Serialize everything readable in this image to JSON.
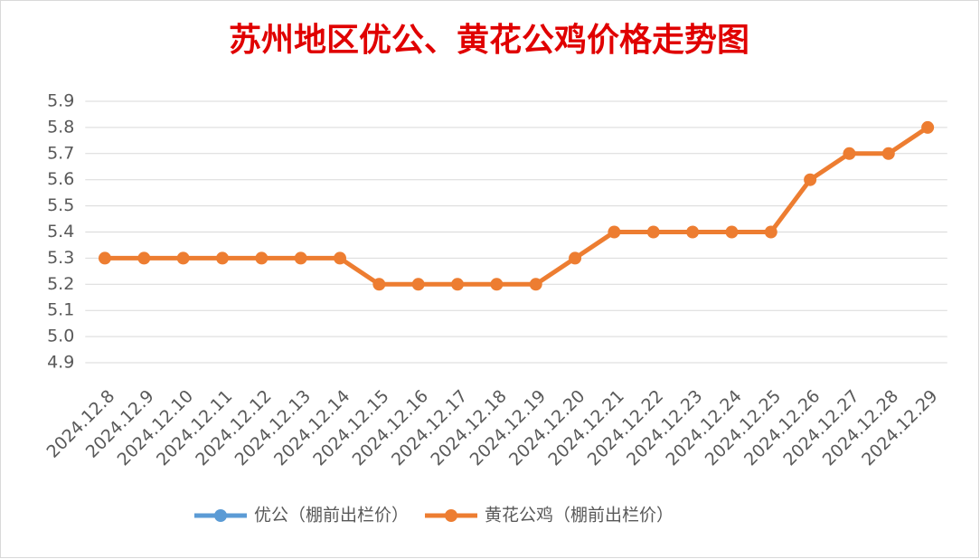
{
  "chart_data": {
    "type": "line",
    "title": "苏州地区优公、黄花公鸡价格走势图",
    "categories": [
      "2024.12.8",
      "2024.12.9",
      "2024.12.10",
      "2024.12.11",
      "2024.12.12",
      "2024.12.13",
      "2024.12.14",
      "2024.12.15",
      "2024.12.16",
      "2024.12.17",
      "2024.12.18",
      "2024.12.19",
      "2024.12.20",
      "2024.12.21",
      "2024.12.22",
      "2024.12.23",
      "2024.12.24",
      "2024.12.25",
      "2024.12.26",
      "2024.12.27",
      "2024.12.28",
      "2024.12.29"
    ],
    "series": [
      {
        "name": "优公（棚前出栏价）",
        "color": "#5b9bd5",
        "values": [
          null,
          null,
          null,
          null,
          null,
          null,
          null,
          null,
          null,
          null,
          null,
          null,
          null,
          null,
          null,
          null,
          null,
          null,
          null,
          null,
          null,
          null
        ]
      },
      {
        "name": "黄花公鸡（棚前出栏价）",
        "color": "#ed7d31",
        "values": [
          5.3,
          5.3,
          5.3,
          5.3,
          5.3,
          5.3,
          5.3,
          5.2,
          5.2,
          5.2,
          5.2,
          5.2,
          5.3,
          5.4,
          5.4,
          5.4,
          5.4,
          5.4,
          5.6,
          5.7,
          5.7,
          5.8
        ]
      }
    ],
    "ylim": [
      4.9,
      5.9
    ],
    "yticks": [
      4.9,
      {
        "value": 5,
        "label": "5.0"
      },
      5.1,
      5.2,
      5.3,
      5.4,
      5.5,
      5.6,
      5.7,
      5.8,
      5.9
    ],
    "grid": true,
    "legend": "bottom"
  }
}
